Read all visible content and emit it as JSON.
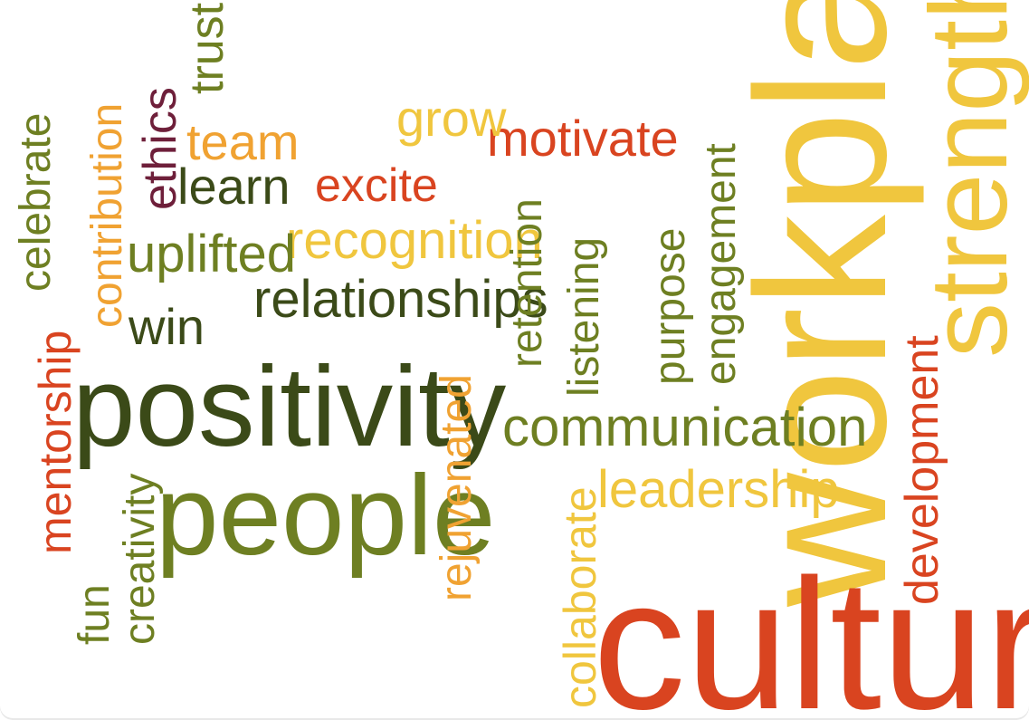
{
  "word_cloud": {
    "palette": {
      "dark_olive": "#3b4a18",
      "olive": "#6e7f22",
      "yellow": "#f0c63e",
      "orange": "#f0a232",
      "red": "#d94420",
      "burgundy": "#6e1f3a"
    },
    "words": [
      {
        "text": "workplace",
        "color": "yellow"
      },
      {
        "text": "strength",
        "color": "yellow"
      },
      {
        "text": "culture",
        "color": "red"
      },
      {
        "text": "positivity",
        "color": "dark_olive"
      },
      {
        "text": "people",
        "color": "olive"
      },
      {
        "text": "relationships",
        "color": "dark_olive"
      },
      {
        "text": "communication",
        "color": "olive"
      },
      {
        "text": "leadership",
        "color": "yellow"
      },
      {
        "text": "recognition",
        "color": "yellow"
      },
      {
        "text": "motivate",
        "color": "red"
      },
      {
        "text": "grow",
        "color": "yellow"
      },
      {
        "text": "excite",
        "color": "red"
      },
      {
        "text": "uplifted",
        "color": "olive"
      },
      {
        "text": "learn",
        "color": "dark_olive"
      },
      {
        "text": "team",
        "color": "orange"
      },
      {
        "text": "win",
        "color": "dark_olive"
      },
      {
        "text": "ethics",
        "color": "burgundy"
      },
      {
        "text": "trust",
        "color": "olive"
      },
      {
        "text": "contribution",
        "color": "orange"
      },
      {
        "text": "celebrate",
        "color": "olive"
      },
      {
        "text": "mentorship",
        "color": "red"
      },
      {
        "text": "creativity",
        "color": "olive"
      },
      {
        "text": "fun",
        "color": "olive"
      },
      {
        "text": "rejuvenated",
        "color": "orange"
      },
      {
        "text": "retention",
        "color": "olive"
      },
      {
        "text": "listening",
        "color": "olive"
      },
      {
        "text": "purpose",
        "color": "olive"
      },
      {
        "text": "engagement",
        "color": "olive"
      },
      {
        "text": "collaborate",
        "color": "yellow"
      },
      {
        "text": "development",
        "color": "red"
      }
    ]
  }
}
